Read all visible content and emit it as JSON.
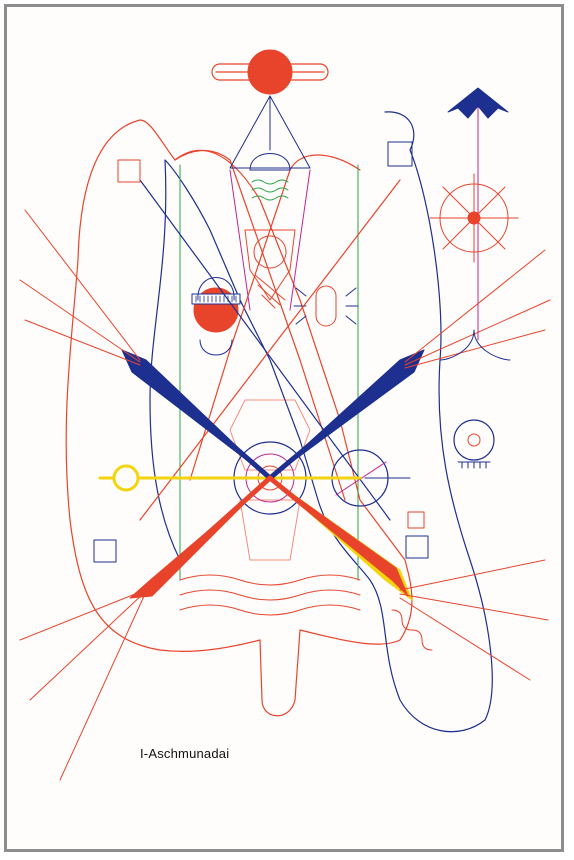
{
  "figure": {
    "caption": "I-Aschmunadai"
  },
  "colors": {
    "red": "#e8442c",
    "blue": "#1d2f8f",
    "green": "#2ea24a",
    "yellow": "#f3d40f",
    "magenta": "#c2278f",
    "frame": "#8d8d8d"
  }
}
